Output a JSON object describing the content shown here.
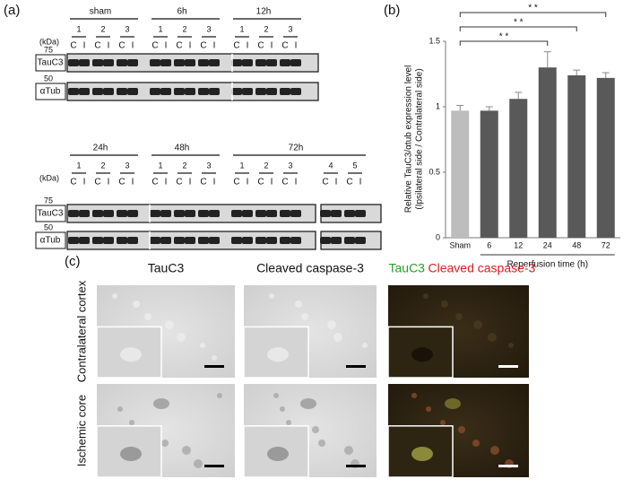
{
  "panel_a": {
    "label": "(a)",
    "unit_label": "(kDa)",
    "sides": [
      "C",
      "I"
    ],
    "blots": [
      {
        "groups": [
          {
            "name": "sham",
            "lanes": [
              "1",
              "2",
              "3"
            ]
          },
          {
            "name": "6h",
            "lanes": [
              "1",
              "2",
              "3"
            ]
          },
          {
            "name": "12h",
            "lanes": [
              "1",
              "2",
              "3"
            ]
          }
        ],
        "rows": [
          {
            "name": "TauC3",
            "marker": "75"
          },
          {
            "name": "αTub",
            "marker": "50"
          }
        ]
      },
      {
        "groups": [
          {
            "name": "24h",
            "lanes": [
              "1",
              "2",
              "3"
            ]
          },
          {
            "name": "48h",
            "lanes": [
              "1",
              "2",
              "3"
            ]
          },
          {
            "name": "72h",
            "lanes": [
              "1",
              "2",
              "3",
              "4",
              "5"
            ]
          }
        ],
        "rows": [
          {
            "name": "TauC3",
            "marker": "75"
          },
          {
            "name": "αTub",
            "marker": "50"
          }
        ]
      }
    ]
  },
  "chart_data": {
    "type": "bar",
    "panel_label": "(b)",
    "ylabel": [
      "Relative TauC3/αtub expression level",
      "(Ipsilateral side / Contralateral side)"
    ],
    "xlabel": "Reperfusion time (h)",
    "categories": [
      "Sham",
      "6",
      "12",
      "24",
      "48",
      "72"
    ],
    "values": [
      0.97,
      0.97,
      1.06,
      1.3,
      1.24,
      1.22
    ],
    "errors": [
      0.04,
      0.03,
      0.05,
      0.12,
      0.04,
      0.04
    ],
    "colors": [
      "#bdbdbd",
      "#595959",
      "#595959",
      "#595959",
      "#595959",
      "#595959"
    ],
    "ylim": [
      0,
      1.5
    ],
    "yticks": [
      0,
      0.5,
      1,
      1.5
    ],
    "significance": [
      {
        "label": "* *",
        "categories": [
          "Sham",
          "24"
        ]
      },
      {
        "label": "* *",
        "categories": [
          "Sham",
          "48"
        ]
      },
      {
        "label": "* *",
        "categories": [
          "Sham",
          "72"
        ]
      }
    ]
  },
  "panel_c": {
    "label": "(c)",
    "columns": [
      "TauC3",
      "Cleaved caspase-3"
    ],
    "merge_header": {
      "green": "TauC3",
      "red": "Cleaved caspase-3"
    },
    "rows": [
      "Contralateral cortex",
      "Ischemic core"
    ]
  }
}
